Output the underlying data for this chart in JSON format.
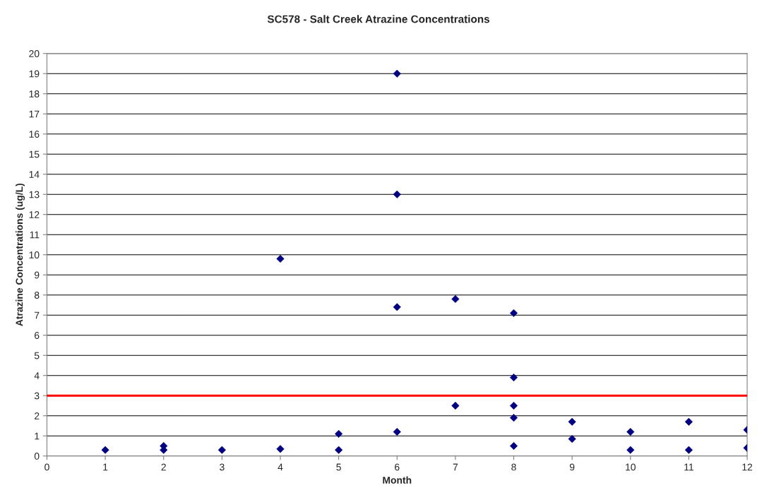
{
  "chart_data": {
    "type": "scatter",
    "title": "SC578 - Salt Creek Atrazine Concentrations",
    "xlabel": "Month",
    "ylabel": "Atrazine Concentrations (ug/L)",
    "x": [
      1,
      2,
      2,
      3,
      4,
      4,
      5,
      5,
      6,
      6,
      6,
      6,
      7,
      7,
      8,
      8,
      8,
      8,
      8,
      9,
      9,
      10,
      10,
      11,
      11,
      12,
      12
    ],
    "series": [
      {
        "color": "#000080",
        "values": [
          0.3,
          0.3,
          0.5,
          0.3,
          0.35,
          9.8,
          0.3,
          1.1,
          1.2,
          7.4,
          13,
          19,
          2.5,
          7.8,
          0.5,
          1.9,
          2.5,
          3.9,
          7.1,
          0.85,
          1.7,
          0.3,
          1.2,
          0.3,
          1.7,
          0.4,
          1.3
        ]
      }
    ],
    "marker": "diamond",
    "xlim": [
      0,
      12
    ],
    "xticks": [
      0,
      1,
      2,
      3,
      4,
      5,
      6,
      7,
      8,
      9,
      10,
      11,
      12
    ],
    "ylim": [
      0,
      20
    ],
    "yticks": [
      0,
      1,
      2,
      3,
      4,
      5,
      6,
      7,
      8,
      9,
      10,
      11,
      12,
      13,
      14,
      15,
      16,
      17,
      18,
      19,
      20
    ],
    "grid": "y",
    "ref_lines": [
      {
        "axis": "y",
        "value": 3,
        "color": "#ff0000"
      }
    ]
  }
}
